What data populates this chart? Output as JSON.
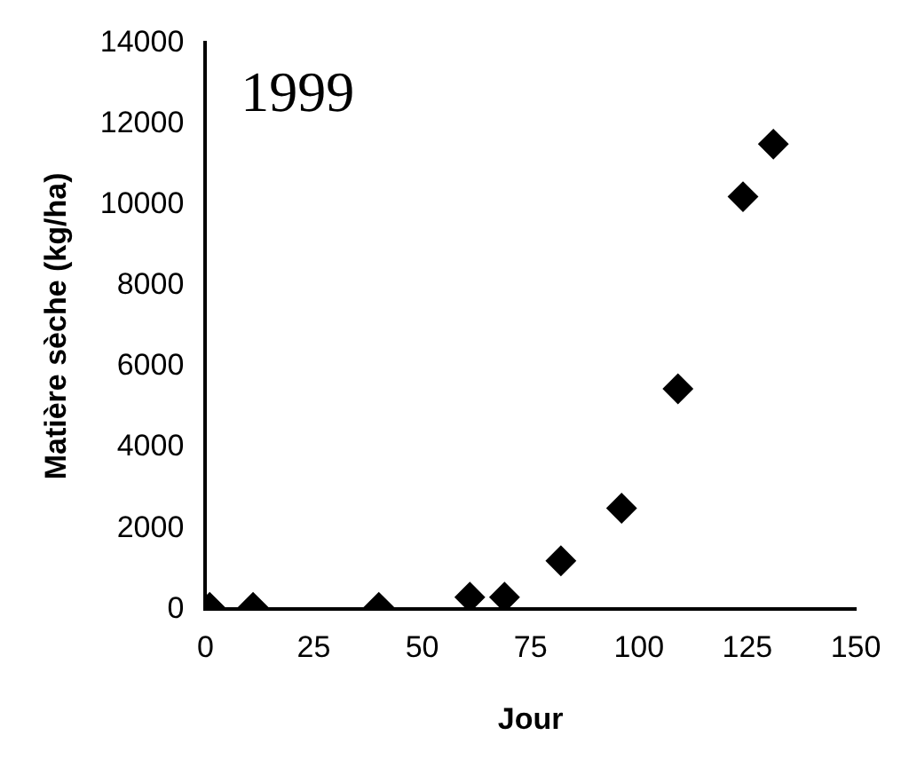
{
  "chart_data": {
    "type": "scatter",
    "xlabel": "Jour",
    "ylabel": "Matière sèche (kg/ha)",
    "annotations": [
      "1999"
    ],
    "x": [
      1,
      11,
      40,
      61,
      69,
      82,
      96,
      109,
      124,
      131
    ],
    "values": [
      50,
      50,
      50,
      300,
      300,
      1200,
      2500,
      5450,
      10200,
      11500
    ],
    "color": "#000000",
    "marker": "diamond",
    "grid": false,
    "legend": false,
    "xlim": [
      0,
      150
    ],
    "xticks": [
      0,
      25,
      50,
      75,
      100,
      125,
      150
    ],
    "ylim": [
      0,
      14000
    ],
    "yticks": [
      0,
      2000,
      4000,
      6000,
      8000,
      10000,
      12000,
      14000
    ]
  }
}
